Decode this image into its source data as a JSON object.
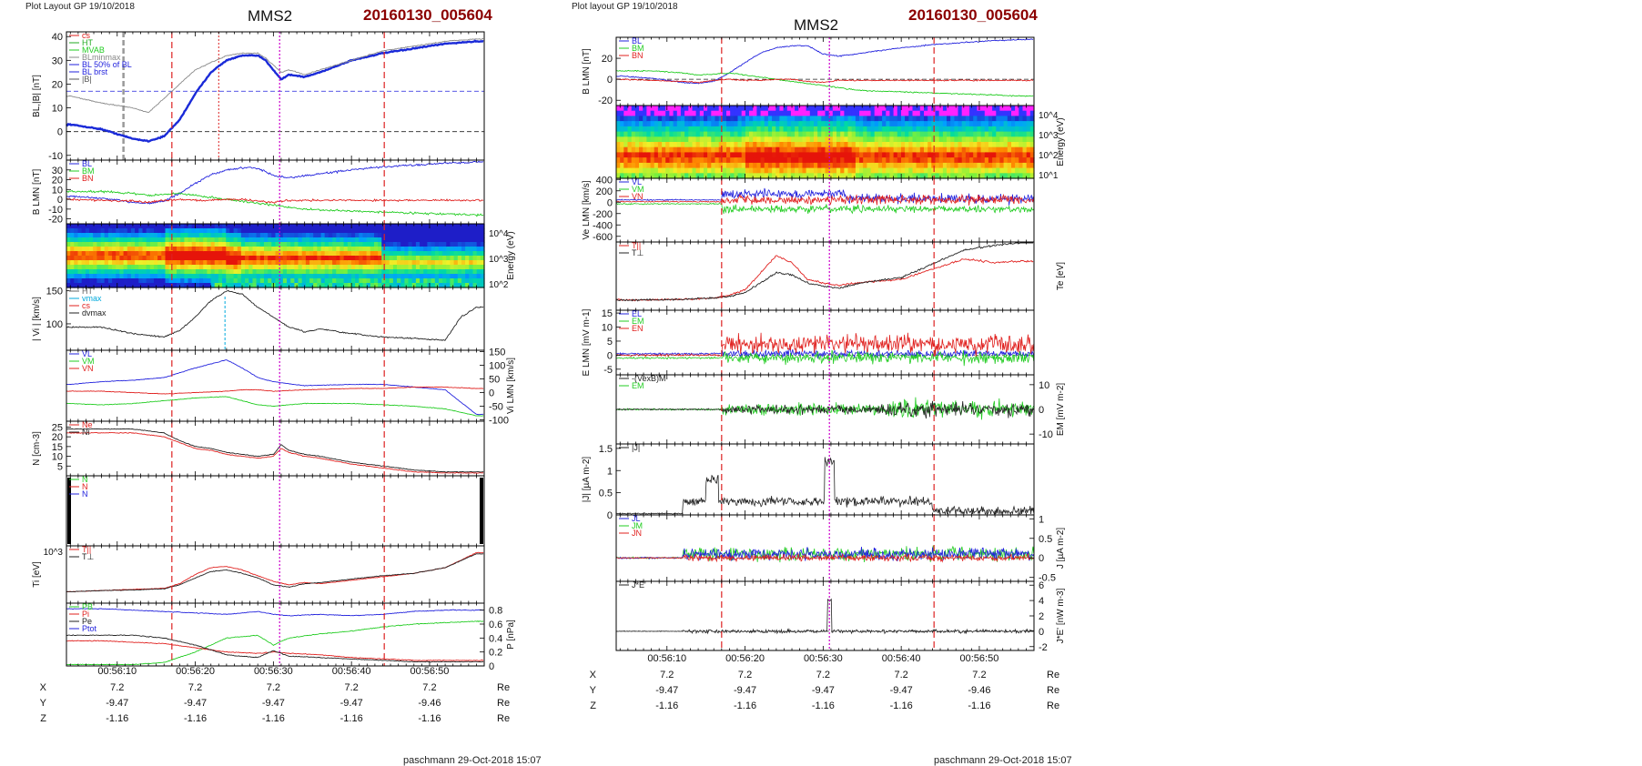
{
  "left": {
    "layout_label": "Plot Layout GP 19/10/2018",
    "title": "MMS2",
    "event_id": "20160130_005604",
    "footer": "paschmann 29-Oct-2018 15:07"
  },
  "right": {
    "layout_label": "Plot layout GP 19/10/2018",
    "title": "MMS2",
    "event_id": "20160130_005604",
    "footer": "paschmann 29-Oct-2018 15:07"
  },
  "time_ticks": [
    "00:56:10",
    "00:56:20",
    "00:56:30",
    "00:56:40",
    "00:56:50"
  ],
  "time_range_s": [
    3.5,
    57.0
  ],
  "event_lines": {
    "red_dashed_s": [
      17.0,
      44.2
    ],
    "magenta_dotted_s": 30.8
  },
  "ephemeris": {
    "unit": "Re",
    "rows": [
      {
        "label": "X",
        "values": [
          "7.2",
          "7.2",
          "7.2",
          "7.2",
          "7.2"
        ]
      },
      {
        "label": "Y",
        "values": [
          "-9.47",
          "-9.47",
          "-9.47",
          "-9.47",
          "-9.46"
        ]
      },
      {
        "label": "Z",
        "values": [
          "-1.16",
          "-1.16",
          "-1.16",
          "-1.16",
          "-1.16"
        ]
      }
    ]
  },
  "colors": {
    "red": "#e0201e",
    "green": "#22cc22",
    "blue": "#2222dd",
    "black": "#222222",
    "magenta": "#cc00cc",
    "event_red": "#dd2222",
    "title_red": "#8b0000"
  },
  "chart_data": [
    {
      "type": "line",
      "panel": "left-1",
      "ylabel": "BL,|B| [nT]",
      "ylim": [
        -12,
        42
      ],
      "yticks": [
        -10,
        0,
        10,
        20,
        30,
        40
      ],
      "legend": [
        "cs",
        "HT",
        "MVAB",
        "BLminmax",
        "BL 50% of BL",
        "BL brst",
        "|B|"
      ],
      "x_s": [
        4,
        8,
        12,
        14,
        16,
        18,
        20,
        22,
        24,
        26,
        28,
        29,
        30,
        31,
        32,
        34,
        36,
        40,
        44,
        48,
        52,
        56
      ],
      "series": [
        {
          "name": "BL brst",
          "color": "#1a2ad8",
          "values": [
            3,
            1,
            -3,
            -4,
            -2,
            5,
            16,
            25,
            30,
            32,
            32,
            30,
            26,
            22,
            24,
            23,
            25,
            30,
            33,
            35,
            37,
            38
          ]
        },
        {
          "name": "|B|",
          "color": "#888888",
          "values": [
            15,
            12,
            10,
            8,
            14,
            20,
            26,
            29,
            32,
            33,
            33,
            31,
            28,
            25,
            26,
            24,
            26,
            30,
            34,
            36,
            38,
            39
          ]
        }
      ],
      "hlines": [
        17,
        0
      ]
    },
    {
      "type": "line",
      "panel": "left-2",
      "ylabel": "B LMN [nT]",
      "ylim": [
        -25,
        40
      ],
      "yticks": [
        -20,
        -10,
        0,
        10,
        20,
        30
      ],
      "legend": [
        "BL",
        "BM",
        "BN"
      ],
      "x_s": [
        4,
        8,
        12,
        14,
        16,
        18,
        20,
        22,
        24,
        26,
        28,
        30,
        32,
        34,
        36,
        40,
        44,
        48,
        52,
        56
      ],
      "series": [
        {
          "name": "BL",
          "color": "#2222dd",
          "values": [
            3,
            1,
            -3,
            -4,
            -2,
            6,
            16,
            25,
            30,
            32,
            32,
            24,
            22,
            24,
            26,
            30,
            33,
            35,
            37,
            38
          ]
        },
        {
          "name": "BM",
          "color": "#22cc22",
          "values": [
            8,
            8,
            6,
            4,
            5,
            6,
            4,
            2,
            0,
            -2,
            -4,
            -6,
            -8,
            -10,
            -11,
            -12,
            -13,
            -14,
            -15,
            -16
          ]
        },
        {
          "name": "BN",
          "color": "#e0201e",
          "values": [
            0,
            -1,
            -2,
            -3,
            -1,
            0,
            -1,
            -1,
            0,
            0,
            -2,
            -3,
            -1,
            -1,
            -1,
            -1,
            -1,
            -1,
            -1,
            -1
          ]
        }
      ]
    },
    {
      "type": "heatmap",
      "panel": "left-3",
      "ylabel": "Energy (eV)",
      "yticks": [
        "10^4",
        "10^3",
        "10^2"
      ]
    },
    {
      "type": "line",
      "panel": "left-4",
      "ylabel": "| Vi | [km/s]",
      "ylim": [
        60,
        155
      ],
      "yticks": [
        100,
        150
      ],
      "legend": [
        "HT",
        "vmax",
        "cs",
        "dvmax"
      ],
      "x_s": [
        4,
        8,
        12,
        16,
        18,
        20,
        22,
        24,
        26,
        28,
        30,
        32,
        34,
        36,
        40,
        44,
        48,
        52,
        54,
        56
      ],
      "series": [
        {
          "name": "|Vi|",
          "color": "#222222",
          "values": [
            95,
            95,
            85,
            80,
            90,
            110,
            135,
            150,
            145,
            125,
            110,
            95,
            88,
            92,
            85,
            80,
            78,
            75,
            110,
            125
          ]
        }
      ]
    },
    {
      "type": "line",
      "panel": "left-5",
      "ylabel": "Vi LMN [km/s]",
      "ylim": [
        -105,
        155
      ],
      "yticks": [
        -100,
        -50,
        0,
        50,
        100,
        150
      ],
      "legend": [
        "VL",
        "VM",
        "VN"
      ],
      "x_s": [
        4,
        8,
        12,
        16,
        20,
        24,
        26,
        28,
        30,
        34,
        40,
        44,
        48,
        52,
        56
      ],
      "series": [
        {
          "name": "VL",
          "color": "#2222dd",
          "values": [
            30,
            40,
            45,
            55,
            90,
            120,
            90,
            55,
            40,
            25,
            30,
            30,
            20,
            10,
            -80
          ]
        },
        {
          "name": "VM",
          "color": "#22cc22",
          "values": [
            -40,
            -45,
            -40,
            -30,
            -20,
            -15,
            -30,
            -45,
            -50,
            -40,
            -40,
            -45,
            -50,
            -60,
            -85
          ]
        },
        {
          "name": "VN",
          "color": "#e0201e",
          "values": [
            5,
            5,
            0,
            -5,
            0,
            5,
            10,
            10,
            5,
            10,
            15,
            15,
            20,
            20,
            15
          ]
        }
      ]
    },
    {
      "type": "line",
      "panel": "left-6",
      "ylabel": "N [cm-3]",
      "ylim": [
        0,
        28
      ],
      "yticks": [
        5,
        10,
        15,
        20,
        25
      ],
      "legend": [
        "Ne",
        "Ni"
      ],
      "x_s": [
        4,
        8,
        12,
        16,
        18,
        20,
        22,
        24,
        26,
        28,
        30,
        31,
        32,
        34,
        36,
        40,
        44,
        48,
        52,
        56
      ],
      "series": [
        {
          "name": "Ne",
          "color": "#e0201e",
          "values": [
            22,
            22,
            22,
            20,
            17,
            14,
            13,
            11,
            10,
            9,
            10,
            14,
            12,
            10,
            9,
            6,
            4,
            2,
            1.5,
            1.5
          ]
        },
        {
          "name": "Ni",
          "color": "#222222",
          "values": [
            24,
            24,
            24,
            22,
            18,
            15,
            14,
            12,
            11,
            10,
            11,
            16,
            13,
            11,
            10,
            7,
            5,
            3,
            2,
            2
          ]
        }
      ]
    },
    {
      "type": "line",
      "panel": "left-7",
      "ylabel": "",
      "legend": [
        "N",
        "N",
        "N"
      ]
    },
    {
      "type": "line",
      "panel": "left-8",
      "ylabel": "Ti [eV]",
      "ytick": "10^3",
      "legend": [
        "T||",
        "T⊥"
      ],
      "x_s": [
        4,
        8,
        12,
        16,
        18,
        20,
        22,
        24,
        26,
        28,
        30,
        32,
        34,
        36,
        40,
        44,
        48,
        52,
        56
      ],
      "series": [
        {
          "name": "T||",
          "color": "#e0201e",
          "values": [
            0.2,
            0.22,
            0.24,
            0.26,
            0.34,
            0.5,
            0.62,
            0.64,
            0.58,
            0.48,
            0.38,
            0.32,
            0.36,
            0.34,
            0.4,
            0.46,
            0.52,
            0.62,
            0.88
          ]
        },
        {
          "name": "T⊥",
          "color": "#222222",
          "values": [
            0.2,
            0.22,
            0.23,
            0.25,
            0.32,
            0.44,
            0.55,
            0.58,
            0.52,
            0.44,
            0.32,
            0.28,
            0.34,
            0.36,
            0.42,
            0.48,
            0.52,
            0.62,
            0.86
          ]
        }
      ]
    },
    {
      "type": "line",
      "panel": "left-9",
      "ylabel": "P [nPa]",
      "ylim": [
        0,
        0.9
      ],
      "yticks": [
        0.0,
        0.2,
        0.4,
        0.6,
        0.8
      ],
      "legend": [
        "PB",
        "Pi",
        "Pe",
        "Ptot"
      ],
      "x_s": [
        4,
        8,
        12,
        16,
        20,
        24,
        28,
        30,
        32,
        36,
        40,
        44,
        48,
        52,
        56
      ],
      "series": [
        {
          "name": "Ptot",
          "color": "#2222dd",
          "values": [
            0.82,
            0.82,
            0.8,
            0.78,
            0.76,
            0.74,
            0.78,
            0.74,
            0.72,
            0.74,
            0.72,
            0.74,
            0.78,
            0.8,
            0.8
          ]
        },
        {
          "name": "PB",
          "color": "#22cc22",
          "values": [
            0.02,
            0.02,
            0.02,
            0.05,
            0.2,
            0.4,
            0.44,
            0.3,
            0.4,
            0.46,
            0.5,
            0.56,
            0.6,
            0.62,
            0.64
          ]
        },
        {
          "name": "Pi",
          "color": "#e0201e",
          "values": [
            0.36,
            0.36,
            0.34,
            0.32,
            0.26,
            0.2,
            0.18,
            0.2,
            0.18,
            0.16,
            0.12,
            0.1,
            0.08,
            0.08,
            0.08
          ]
        },
        {
          "name": "Pe",
          "color": "#222222",
          "values": [
            0.44,
            0.44,
            0.44,
            0.4,
            0.3,
            0.16,
            0.12,
            0.22,
            0.14,
            0.12,
            0.1,
            0.08,
            0.06,
            0.06,
            0.06
          ]
        }
      ]
    },
    {
      "type": "line",
      "panel": "right-1",
      "ylabel": "B LMN [nT]",
      "ylim": [
        -25,
        40
      ],
      "yticks": [
        -20,
        0,
        20
      ],
      "legend": [
        "BL",
        "BM",
        "BN"
      ],
      "x_s": [
        4,
        8,
        12,
        14,
        16,
        18,
        20,
        22,
        24,
        26,
        28,
        30,
        32,
        34,
        36,
        40,
        44,
        48,
        52,
        56
      ],
      "series": [
        {
          "name": "BL",
          "color": "#2222dd",
          "values": [
            3,
            1,
            -3,
            -4,
            -2,
            6,
            16,
            25,
            30,
            32,
            32,
            24,
            22,
            24,
            26,
            30,
            33,
            35,
            37,
            38
          ]
        },
        {
          "name": "BM",
          "color": "#22cc22",
          "values": [
            8,
            8,
            6,
            4,
            5,
            6,
            4,
            2,
            0,
            -2,
            -4,
            -6,
            -8,
            -10,
            -11,
            -12,
            -13,
            -14,
            -15,
            -16
          ]
        },
        {
          "name": "BN",
          "color": "#e0201e",
          "values": [
            0,
            -1,
            -2,
            -3,
            -1,
            0,
            -1,
            -1,
            0,
            0,
            -2,
            -3,
            -1,
            -1,
            -1,
            -1,
            -1,
            -1,
            -1,
            -1
          ]
        }
      ]
    },
    {
      "type": "heatmap",
      "panel": "right-2",
      "ylabel": "Energy (eV)",
      "yticks": [
        "10^4",
        "10^3",
        "10^2",
        "10^1"
      ]
    },
    {
      "type": "line",
      "panel": "right-3",
      "ylabel": "Ve LMN [km/s]",
      "ylim": [
        -700,
        420
      ],
      "yticks": [
        -600,
        -400,
        -200,
        0,
        200,
        400
      ],
      "legend": [
        "VL",
        "VM",
        "VN"
      ]
    },
    {
      "type": "line",
      "panel": "right-4",
      "ylabel": "Te [eV]",
      "legend": [
        "T||",
        "T⊥"
      ],
      "x_s": [
        4,
        8,
        12,
        16,
        18,
        20,
        22,
        24,
        26,
        28,
        30,
        32,
        34,
        36,
        40,
        44,
        48,
        52,
        56
      ],
      "series": [
        {
          "name": "T||",
          "color": "#e0201e",
          "values": [
            0.15,
            0.15,
            0.16,
            0.18,
            0.22,
            0.3,
            0.55,
            0.8,
            0.7,
            0.45,
            0.4,
            0.36,
            0.4,
            0.42,
            0.45,
            0.6,
            0.75,
            0.7,
            0.72
          ]
        },
        {
          "name": "T⊥",
          "color": "#222222",
          "values": [
            0.15,
            0.15,
            0.16,
            0.18,
            0.2,
            0.26,
            0.4,
            0.55,
            0.52,
            0.4,
            0.35,
            0.32,
            0.38,
            0.42,
            0.48,
            0.68,
            0.88,
            0.95,
            1.0
          ]
        }
      ]
    },
    {
      "type": "line",
      "panel": "right-5",
      "ylabel": "E LMN [mV m-1]",
      "ylim": [
        -7,
        16
      ],
      "yticks": [
        -5,
        0,
        5,
        10,
        15
      ],
      "legend": [
        "EL",
        "EM",
        "EN"
      ]
    },
    {
      "type": "line",
      "panel": "right-6",
      "ylabel": "EM [mV m-2]",
      "ylim": [
        -14,
        14
      ],
      "yticks": [
        -10,
        0,
        10
      ],
      "legend": [
        "-(VexB)M",
        "EM"
      ]
    },
    {
      "type": "line",
      "panel": "right-7",
      "ylabel": "|J| [µA m-2]",
      "ylim": [
        0,
        1.6
      ],
      "yticks": [
        0.0,
        0.5,
        1.0,
        1.5
      ],
      "legend": [
        "|J|"
      ]
    },
    {
      "type": "line",
      "panel": "right-8",
      "ylabel": "J [µA m-2]",
      "ylim": [
        -0.6,
        1.1
      ],
      "yticks": [
        -0.5,
        0.0,
        0.5,
        1.0
      ],
      "legend": [
        "JL",
        "JM",
        "JN"
      ]
    },
    {
      "type": "line",
      "panel": "right-9",
      "ylabel": "J*E' [nW m-3]",
      "ylim": [
        -2.5,
        6.5
      ],
      "yticks": [
        -2,
        0,
        2,
        4,
        6
      ],
      "legend": [
        "J*E'"
      ]
    }
  ]
}
